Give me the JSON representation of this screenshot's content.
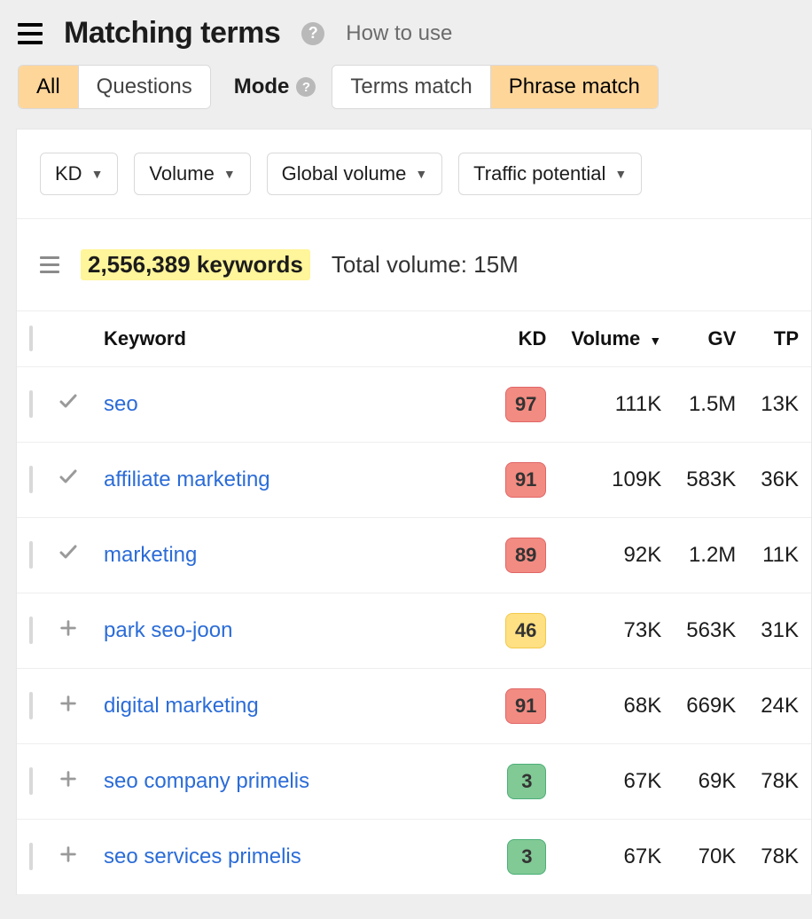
{
  "header": {
    "title": "Matching terms",
    "how_to_use": "How to use",
    "help_glyph": "?"
  },
  "type_filter": {
    "options": [
      "All",
      "Questions"
    ],
    "selected_index": 0
  },
  "mode": {
    "label": "Mode",
    "help_glyph": "?",
    "options": [
      "Terms match",
      "Phrase match"
    ],
    "selected_index": 1
  },
  "filters": [
    {
      "label": "KD"
    },
    {
      "label": "Volume"
    },
    {
      "label": "Global volume"
    },
    {
      "label": "Traffic potential"
    }
  ],
  "summary": {
    "keywords_count_text": "2,556,389 keywords",
    "total_volume_text": "Total volume: 15M"
  },
  "table": {
    "columns": {
      "keyword": "Keyword",
      "kd": "KD",
      "volume": "Volume",
      "gv": "GV",
      "tp": "TP"
    },
    "sort": {
      "column": "volume",
      "dir": "desc",
      "glyph": "▼"
    },
    "kd_colors": {
      "red": {
        "bg": "#f28b82",
        "border": "#e06666"
      },
      "yellow": {
        "bg": "#ffe082",
        "border": "#f2c94c"
      },
      "green": {
        "bg": "#81c995",
        "border": "#4caf78"
      }
    },
    "rows": [
      {
        "in_list": true,
        "keyword": "seo",
        "kd": "97",
        "kd_tier": "red",
        "volume": "111K",
        "gv": "1.5M",
        "tp": "13K"
      },
      {
        "in_list": true,
        "keyword": "affiliate marketing",
        "kd": "91",
        "kd_tier": "red",
        "volume": "109K",
        "gv": "583K",
        "tp": "36K"
      },
      {
        "in_list": true,
        "keyword": "marketing",
        "kd": "89",
        "kd_tier": "red",
        "volume": "92K",
        "gv": "1.2M",
        "tp": "11K"
      },
      {
        "in_list": false,
        "keyword": "park seo-joon",
        "kd": "46",
        "kd_tier": "yellow",
        "volume": "73K",
        "gv": "563K",
        "tp": "31K"
      },
      {
        "in_list": false,
        "keyword": "digital marketing",
        "kd": "91",
        "kd_tier": "red",
        "volume": "68K",
        "gv": "669K",
        "tp": "24K"
      },
      {
        "in_list": false,
        "keyword": "seo company primelis",
        "kd": "3",
        "kd_tier": "green",
        "volume": "67K",
        "gv": "69K",
        "tp": "78K"
      },
      {
        "in_list": false,
        "keyword": "seo services primelis",
        "kd": "3",
        "kd_tier": "green",
        "volume": "67K",
        "gv": "70K",
        "tp": "78K"
      }
    ]
  }
}
